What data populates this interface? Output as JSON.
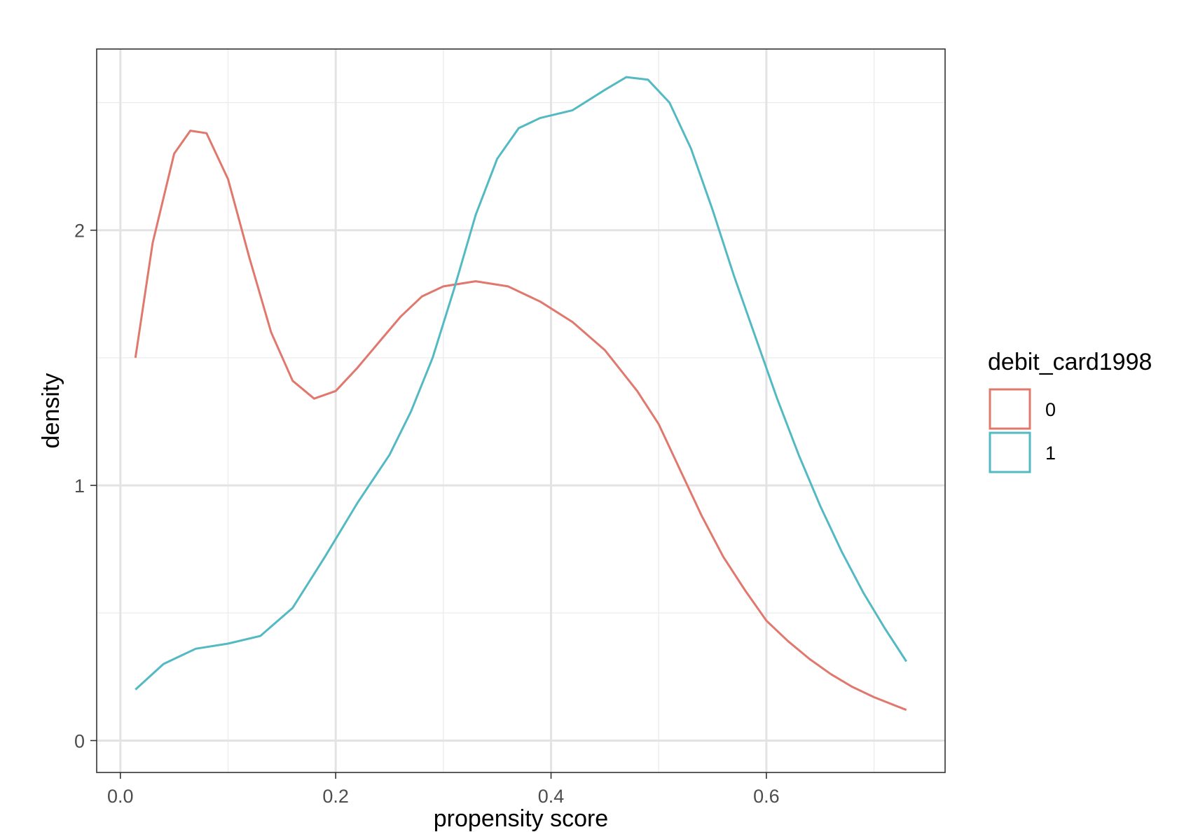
{
  "chart_data": {
    "type": "line",
    "xlabel": "propensity score",
    "ylabel": "density",
    "xlim": [
      -0.022,
      0.766
    ],
    "ylim": [
      -0.125,
      2.71
    ],
    "x_ticks": [
      {
        "value": 0.0,
        "label": "0.0"
      },
      {
        "value": 0.2,
        "label": "0.2"
      },
      {
        "value": 0.4,
        "label": "0.4"
      },
      {
        "value": 0.6,
        "label": "0.6"
      }
    ],
    "x_minor_ticks": [
      0.1,
      0.3,
      0.5,
      0.7
    ],
    "y_ticks": [
      {
        "value": 0,
        "label": "0"
      },
      {
        "value": 1,
        "label": "1"
      },
      {
        "value": 2,
        "label": "2"
      }
    ],
    "y_minor_ticks": [
      0.5,
      1.5,
      2.5
    ],
    "grid": true,
    "legend": {
      "title": "debit_card1998",
      "position": "right"
    },
    "series": [
      {
        "name": "0",
        "color": "#E0786E",
        "points": [
          [
            0.014,
            1.5
          ],
          [
            0.03,
            1.95
          ],
          [
            0.05,
            2.3
          ],
          [
            0.065,
            2.39
          ],
          [
            0.08,
            2.38
          ],
          [
            0.1,
            2.2
          ],
          [
            0.12,
            1.89
          ],
          [
            0.14,
            1.6
          ],
          [
            0.16,
            1.41
          ],
          [
            0.18,
            1.34
          ],
          [
            0.2,
            1.37
          ],
          [
            0.22,
            1.46
          ],
          [
            0.24,
            1.56
          ],
          [
            0.26,
            1.66
          ],
          [
            0.28,
            1.74
          ],
          [
            0.3,
            1.78
          ],
          [
            0.33,
            1.8
          ],
          [
            0.36,
            1.78
          ],
          [
            0.39,
            1.72
          ],
          [
            0.42,
            1.64
          ],
          [
            0.45,
            1.53
          ],
          [
            0.48,
            1.37
          ],
          [
            0.5,
            1.24
          ],
          [
            0.52,
            1.06
          ],
          [
            0.54,
            0.88
          ],
          [
            0.56,
            0.72
          ],
          [
            0.58,
            0.59
          ],
          [
            0.6,
            0.47
          ],
          [
            0.62,
            0.39
          ],
          [
            0.64,
            0.32
          ],
          [
            0.66,
            0.26
          ],
          [
            0.68,
            0.21
          ],
          [
            0.7,
            0.17
          ],
          [
            0.73,
            0.12
          ]
        ]
      },
      {
        "name": "1",
        "color": "#53B9C2",
        "points": [
          [
            0.014,
            0.2
          ],
          [
            0.04,
            0.3
          ],
          [
            0.07,
            0.36
          ],
          [
            0.1,
            0.38
          ],
          [
            0.13,
            0.41
          ],
          [
            0.16,
            0.52
          ],
          [
            0.19,
            0.72
          ],
          [
            0.22,
            0.93
          ],
          [
            0.25,
            1.12
          ],
          [
            0.27,
            1.29
          ],
          [
            0.29,
            1.5
          ],
          [
            0.31,
            1.77
          ],
          [
            0.33,
            2.06
          ],
          [
            0.35,
            2.28
          ],
          [
            0.37,
            2.4
          ],
          [
            0.39,
            2.44
          ],
          [
            0.42,
            2.47
          ],
          [
            0.45,
            2.55
          ],
          [
            0.47,
            2.6
          ],
          [
            0.49,
            2.59
          ],
          [
            0.51,
            2.5
          ],
          [
            0.53,
            2.32
          ],
          [
            0.55,
            2.08
          ],
          [
            0.57,
            1.82
          ],
          [
            0.59,
            1.58
          ],
          [
            0.61,
            1.34
          ],
          [
            0.63,
            1.12
          ],
          [
            0.65,
            0.92
          ],
          [
            0.67,
            0.74
          ],
          [
            0.69,
            0.58
          ],
          [
            0.71,
            0.44
          ],
          [
            0.73,
            0.31
          ]
        ]
      }
    ]
  }
}
